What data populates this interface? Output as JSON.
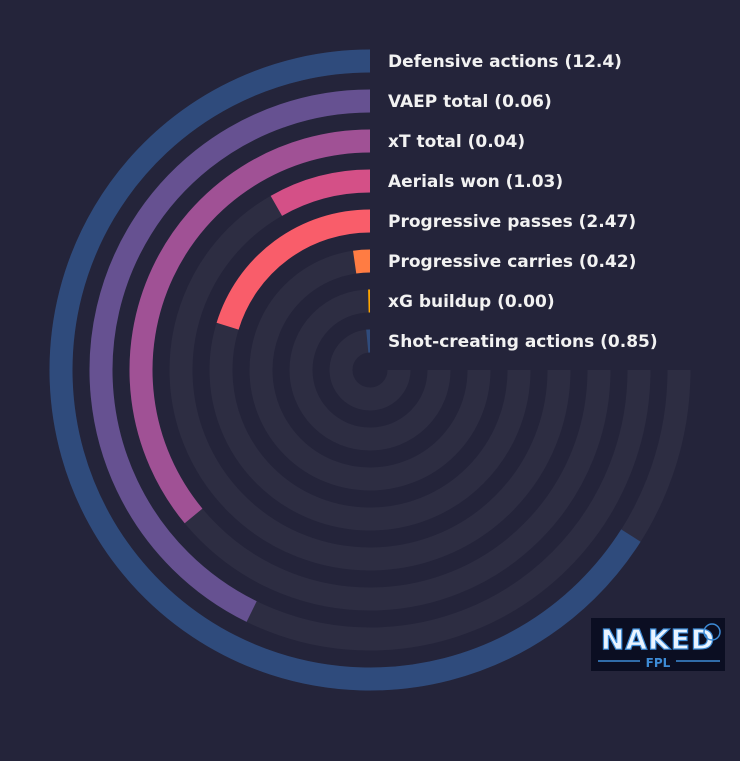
{
  "chart_data": {
    "type": "radial-bar",
    "categories": [
      "Defensive actions",
      "VAEP total",
      "xT total",
      "Aerials won",
      "Progressive passes",
      "Progressive carries",
      "xG buildup",
      "Shot-creating actions"
    ],
    "value_labels": [
      "12.4",
      "0.06",
      "0.04",
      "1.03",
      "2.47",
      "0.42",
      "0.00",
      "0.85"
    ],
    "labels": [
      "Defensive actions (12.4)",
      "VAEP total (0.06)",
      "xT total (0.04)",
      "Aerials won (1.03)",
      "Progressive passes (2.47)",
      "Progressive carries (0.42)",
      "xG buildup (0.00)",
      "Shot-creating actions (0.85)"
    ],
    "percentiles": [
      0.88,
      0.57,
      0.48,
      0.11,
      0.27,
      0.03,
      0.005,
      0.02
    ],
    "colors": [
      "#2f4b7c",
      "#665191",
      "#a05195",
      "#d45087",
      "#f95d6a",
      "#ff7c43",
      "#ffa600",
      "#2f4b7c"
    ],
    "track_color": "#2d2d42",
    "background": "#24243a",
    "label_color": "#f2f2f2"
  },
  "logo": {
    "text_top": "NAKED",
    "text_bottom": "FPL"
  }
}
